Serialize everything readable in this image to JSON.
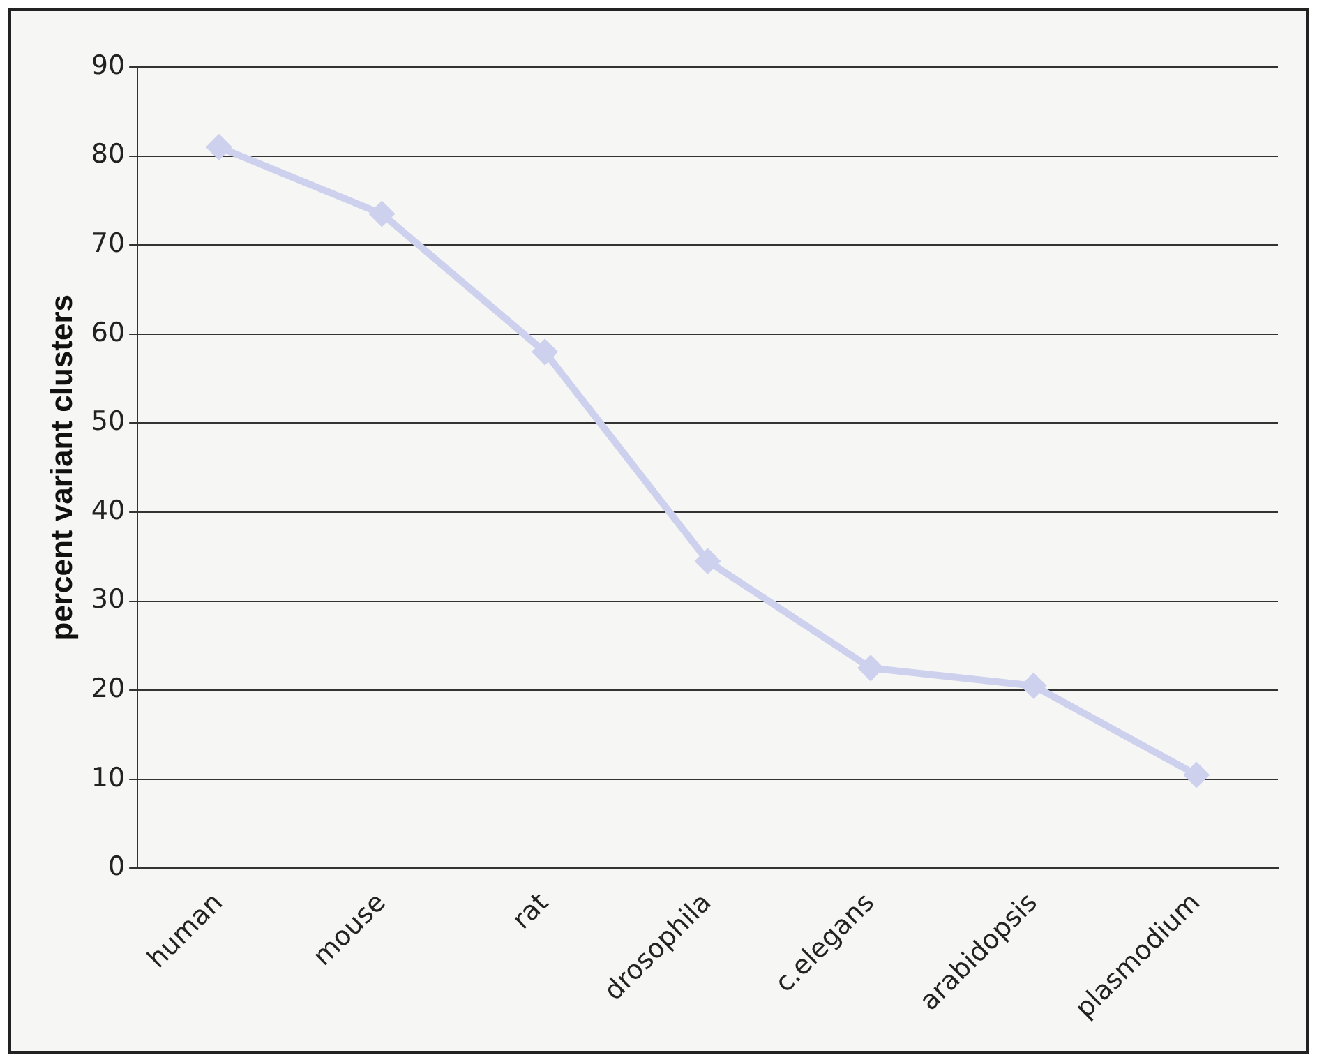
{
  "chart_data": {
    "type": "line",
    "ylabel": "percent variant clusters",
    "categories": [
      "human",
      "mouse",
      "rat",
      "drosophila",
      "c.elegans",
      "arabidopsis",
      "plasmodium"
    ],
    "series": [
      {
        "color": "#cdd1ee",
        "values": [
          81,
          73.5,
          58,
          34.5,
          22.5,
          20.5,
          10.5
        ]
      }
    ],
    "ylim": [
      0,
      90
    ],
    "yticks": [
      0,
      10,
      20,
      30,
      40,
      50,
      60,
      70,
      80,
      90
    ],
    "grid": "y",
    "legend": false,
    "marker": "diamond",
    "line_style": "solid"
  }
}
